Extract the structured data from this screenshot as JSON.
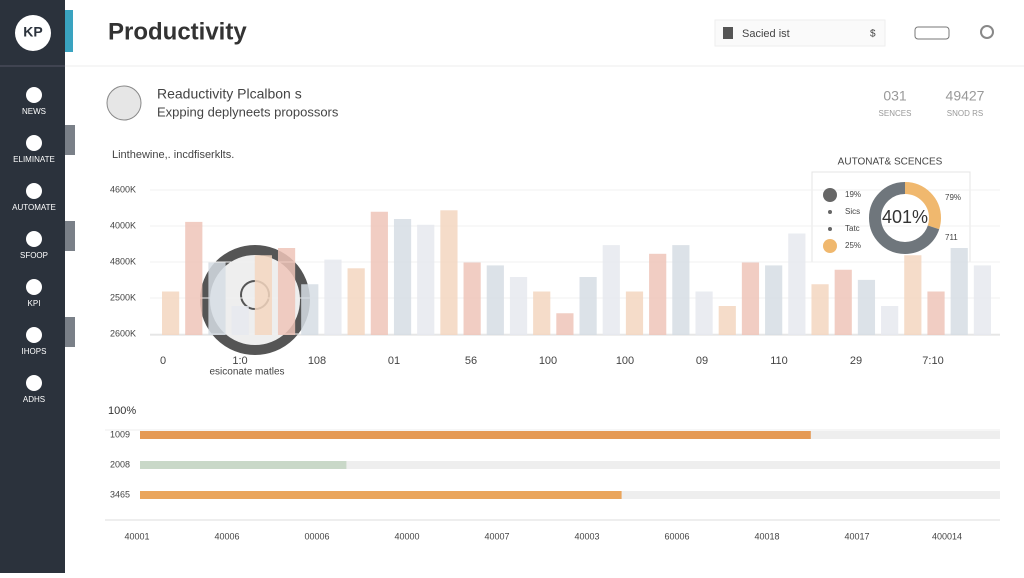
{
  "sidebar": {
    "logo": "KP",
    "items": [
      "NEWS",
      "ELIMINATE",
      "AUTOMATE",
      "SFOOP",
      "KPI",
      "IHOPS",
      "ADHS"
    ]
  },
  "header": {
    "title": "Productivity",
    "search": "Sacied ist",
    "search_suffix": "$"
  },
  "card": {
    "title": "Reaductivity Plcalbon s",
    "subtitle": "Expping deplyneets propossors",
    "stats": [
      {
        "value": "031",
        "label": "SENCES"
      },
      {
        "value": "49427",
        "label": "SNOD RS"
      }
    ]
  },
  "top_chart": {
    "subtitle": "Linthewine,. incdfiserklts.",
    "y_labels": [
      "4600K",
      "4000K",
      "4800K",
      "2500K",
      "2600K"
    ],
    "x_labels": [
      "0",
      "1:0",
      "108",
      "01",
      "56",
      "100",
      "100",
      "09",
      "110",
      "29",
      "7:10"
    ],
    "annotation": "esiconate matles",
    "values": [
      30,
      78,
      50,
      20,
      55,
      60,
      35,
      52,
      46,
      85,
      80,
      76,
      86,
      50,
      48,
      40,
      30,
      15,
      40,
      62,
      30,
      56,
      62,
      30,
      20,
      50,
      48,
      70,
      35,
      45,
      38,
      20,
      55,
      30,
      60,
      48
    ],
    "colors": [
      "#f3d6c0",
      "#efc4b8",
      "#d6dde4",
      "#e6e9ee"
    ]
  },
  "donut": {
    "title": "AUTONAT& SCENCES",
    "center": "401%",
    "legend": [
      "19%",
      "Sics",
      "Tatc",
      "25%"
    ],
    "right": [
      "79%",
      "711"
    ],
    "segments": [
      {
        "value": 30,
        "color": "#f0b86e"
      },
      {
        "value": 70,
        "color": "#6f767c"
      }
    ]
  },
  "bottom_chart": {
    "top_label": "100%",
    "rows": [
      {
        "label": "1009",
        "value": 78,
        "color": "#e59a55"
      },
      {
        "label": "2008",
        "value": 24,
        "color": "#c9d8c8"
      },
      {
        "label": "3465",
        "value": 56,
        "color": "#eaa55c"
      }
    ],
    "x_labels": [
      "40001",
      "40006",
      "00006",
      "40000",
      "40007",
      "40003",
      "60006",
      "40018",
      "40017",
      "400014"
    ]
  }
}
